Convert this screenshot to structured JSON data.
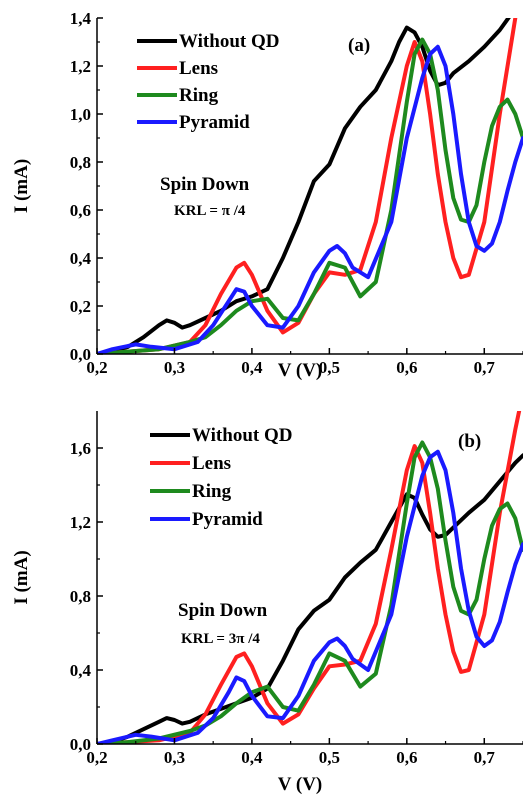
{
  "colors": {
    "without_qd": "#000000",
    "lens": "#ff2020",
    "ring": "#1e8a1e",
    "pyramid": "#1a1aff"
  },
  "chart_data": [
    {
      "type": "line",
      "panel_label": "(a)",
      "xlabel": "V (V)",
      "ylabel": "I (mA)",
      "xlim": [
        0.2,
        0.75
      ],
      "ylim": [
        0.0,
        1.4
      ],
      "xticks": [
        0.2,
        0.3,
        0.4,
        0.5,
        0.6,
        0.7
      ],
      "xtick_labels": [
        "0,2",
        "0,3",
        "0,4",
        "0,5",
        "0,6",
        "0,7"
      ],
      "yticks": [
        0.0,
        0.2,
        0.4,
        0.6,
        0.8,
        1.0,
        1.2,
        1.4
      ],
      "ytick_labels": [
        "0,0",
        "0,2",
        "0,4",
        "0,6",
        "0,8",
        "1,0",
        "1,2",
        "1,4"
      ],
      "annotation_line1": "Spin Down",
      "annotation_line2": "KRL = π /4",
      "legend_position": "top-left",
      "series": [
        {
          "name": "Without QD",
          "x": [
            0.2,
            0.22,
            0.24,
            0.26,
            0.28,
            0.29,
            0.3,
            0.31,
            0.32,
            0.34,
            0.36,
            0.38,
            0.4,
            0.42,
            0.44,
            0.46,
            0.48,
            0.5,
            0.52,
            0.54,
            0.56,
            0.58,
            0.59,
            0.6,
            0.61,
            0.62,
            0.63,
            0.64,
            0.65,
            0.66,
            0.68,
            0.7,
            0.72,
            0.74,
            0.75
          ],
          "y": [
            0.0,
            0.01,
            0.03,
            0.07,
            0.12,
            0.14,
            0.13,
            0.11,
            0.12,
            0.15,
            0.18,
            0.22,
            0.24,
            0.27,
            0.4,
            0.55,
            0.72,
            0.79,
            0.94,
            1.03,
            1.1,
            1.22,
            1.3,
            1.36,
            1.34,
            1.28,
            1.18,
            1.12,
            1.13,
            1.17,
            1.22,
            1.28,
            1.35,
            1.44,
            1.5
          ]
        },
        {
          "name": "Lens",
          "x": [
            0.2,
            0.24,
            0.28,
            0.32,
            0.34,
            0.36,
            0.38,
            0.39,
            0.4,
            0.42,
            0.44,
            0.46,
            0.48,
            0.5,
            0.52,
            0.54,
            0.56,
            0.58,
            0.6,
            0.61,
            0.62,
            0.63,
            0.64,
            0.65,
            0.66,
            0.67,
            0.68,
            0.7,
            0.72,
            0.74,
            0.75
          ],
          "y": [
            0.0,
            0.01,
            0.02,
            0.05,
            0.12,
            0.25,
            0.36,
            0.38,
            0.33,
            0.18,
            0.09,
            0.13,
            0.25,
            0.34,
            0.33,
            0.35,
            0.55,
            0.9,
            1.2,
            1.3,
            1.22,
            1.0,
            0.75,
            0.55,
            0.4,
            0.32,
            0.33,
            0.55,
            1.0,
            1.4,
            1.6
          ]
        },
        {
          "name": "Ring",
          "x": [
            0.2,
            0.24,
            0.28,
            0.32,
            0.34,
            0.36,
            0.38,
            0.4,
            0.42,
            0.44,
            0.46,
            0.48,
            0.5,
            0.52,
            0.54,
            0.56,
            0.58,
            0.6,
            0.61,
            0.62,
            0.63,
            0.64,
            0.65,
            0.66,
            0.67,
            0.68,
            0.69,
            0.7,
            0.71,
            0.72,
            0.73,
            0.74,
            0.75
          ],
          "y": [
            0.0,
            0.01,
            0.02,
            0.05,
            0.07,
            0.12,
            0.18,
            0.22,
            0.23,
            0.15,
            0.14,
            0.25,
            0.38,
            0.36,
            0.24,
            0.3,
            0.6,
            1.05,
            1.25,
            1.31,
            1.25,
            1.1,
            0.85,
            0.65,
            0.56,
            0.55,
            0.62,
            0.8,
            0.95,
            1.03,
            1.06,
            1.0,
            0.9
          ]
        },
        {
          "name": "Pyramid",
          "x": [
            0.2,
            0.22,
            0.25,
            0.27,
            0.3,
            0.33,
            0.35,
            0.37,
            0.38,
            0.39,
            0.4,
            0.42,
            0.44,
            0.46,
            0.48,
            0.5,
            0.51,
            0.52,
            0.53,
            0.55,
            0.58,
            0.6,
            0.62,
            0.63,
            0.64,
            0.65,
            0.66,
            0.67,
            0.68,
            0.69,
            0.7,
            0.71,
            0.72,
            0.73,
            0.74,
            0.75
          ],
          "y": [
            0.0,
            0.02,
            0.04,
            0.03,
            0.02,
            0.05,
            0.12,
            0.22,
            0.27,
            0.26,
            0.2,
            0.12,
            0.11,
            0.2,
            0.34,
            0.43,
            0.45,
            0.42,
            0.36,
            0.32,
            0.55,
            0.9,
            1.15,
            1.25,
            1.28,
            1.2,
            1.0,
            0.75,
            0.55,
            0.45,
            0.43,
            0.46,
            0.55,
            0.68,
            0.8,
            0.9
          ]
        }
      ]
    },
    {
      "type": "line",
      "panel_label": "(b)",
      "xlabel": "V (V)",
      "ylabel": "I (mA)",
      "xlim": [
        0.2,
        0.75
      ],
      "ylim": [
        0.0,
        1.8
      ],
      "xticks": [
        0.2,
        0.3,
        0.4,
        0.5,
        0.6,
        0.7
      ],
      "xtick_labels": [
        "0,2",
        "0,3",
        "0,4",
        "0,5",
        "0,6",
        "0,7"
      ],
      "yticks": [
        0.0,
        0.4,
        0.8,
        1.2,
        1.6
      ],
      "ytick_labels": [
        "0,0",
        "0,4",
        "0,8",
        "1,2",
        "1,6"
      ],
      "annotation_line1": "Spin Down",
      "annotation_line2": "KRL = 3π /4",
      "legend_position": "top-left",
      "series": [
        {
          "name": "Without QD",
          "x": [
            0.2,
            0.22,
            0.24,
            0.26,
            0.28,
            0.29,
            0.3,
            0.31,
            0.32,
            0.34,
            0.36,
            0.38,
            0.4,
            0.42,
            0.44,
            0.46,
            0.48,
            0.5,
            0.52,
            0.54,
            0.56,
            0.58,
            0.6,
            0.61,
            0.62,
            0.63,
            0.64,
            0.65,
            0.66,
            0.68,
            0.7,
            0.72,
            0.74,
            0.75
          ],
          "y": [
            0.0,
            0.01,
            0.04,
            0.08,
            0.12,
            0.14,
            0.13,
            0.11,
            0.12,
            0.16,
            0.19,
            0.22,
            0.25,
            0.3,
            0.45,
            0.62,
            0.72,
            0.78,
            0.9,
            0.98,
            1.05,
            1.2,
            1.35,
            1.33,
            1.24,
            1.16,
            1.12,
            1.13,
            1.17,
            1.25,
            1.32,
            1.42,
            1.52,
            1.56
          ]
        },
        {
          "name": "Lens",
          "x": [
            0.2,
            0.24,
            0.28,
            0.32,
            0.34,
            0.36,
            0.38,
            0.39,
            0.4,
            0.42,
            0.44,
            0.46,
            0.48,
            0.5,
            0.52,
            0.54,
            0.56,
            0.58,
            0.6,
            0.61,
            0.62,
            0.63,
            0.64,
            0.65,
            0.66,
            0.67,
            0.68,
            0.7,
            0.72,
            0.74,
            0.75
          ],
          "y": [
            0.0,
            0.01,
            0.02,
            0.06,
            0.16,
            0.32,
            0.47,
            0.49,
            0.42,
            0.22,
            0.11,
            0.16,
            0.3,
            0.42,
            0.43,
            0.45,
            0.65,
            1.05,
            1.48,
            1.61,
            1.52,
            1.25,
            0.95,
            0.7,
            0.5,
            0.39,
            0.4,
            0.7,
            1.25,
            1.7,
            1.9
          ]
        },
        {
          "name": "Ring",
          "x": [
            0.2,
            0.24,
            0.28,
            0.32,
            0.34,
            0.36,
            0.38,
            0.4,
            0.42,
            0.44,
            0.46,
            0.48,
            0.5,
            0.52,
            0.54,
            0.56,
            0.58,
            0.6,
            0.61,
            0.62,
            0.63,
            0.64,
            0.65,
            0.66,
            0.67,
            0.68,
            0.69,
            0.7,
            0.71,
            0.72,
            0.73,
            0.74,
            0.75
          ],
          "y": [
            0.0,
            0.01,
            0.03,
            0.07,
            0.1,
            0.15,
            0.22,
            0.28,
            0.31,
            0.2,
            0.18,
            0.32,
            0.49,
            0.45,
            0.31,
            0.38,
            0.75,
            1.3,
            1.55,
            1.63,
            1.55,
            1.38,
            1.1,
            0.85,
            0.72,
            0.7,
            0.78,
            1.0,
            1.18,
            1.27,
            1.3,
            1.22,
            1.05
          ]
        },
        {
          "name": "Pyramid",
          "x": [
            0.2,
            0.22,
            0.25,
            0.27,
            0.3,
            0.33,
            0.35,
            0.37,
            0.38,
            0.39,
            0.4,
            0.42,
            0.44,
            0.46,
            0.48,
            0.5,
            0.51,
            0.52,
            0.53,
            0.55,
            0.58,
            0.6,
            0.62,
            0.63,
            0.64,
            0.65,
            0.66,
            0.67,
            0.68,
            0.69,
            0.7,
            0.71,
            0.72,
            0.73,
            0.74,
            0.75
          ],
          "y": [
            0.0,
            0.02,
            0.05,
            0.04,
            0.02,
            0.06,
            0.14,
            0.28,
            0.36,
            0.34,
            0.26,
            0.15,
            0.14,
            0.26,
            0.45,
            0.55,
            0.57,
            0.53,
            0.46,
            0.4,
            0.7,
            1.12,
            1.45,
            1.55,
            1.58,
            1.48,
            1.25,
            0.95,
            0.72,
            0.58,
            0.53,
            0.56,
            0.66,
            0.82,
            0.97,
            1.08
          ]
        }
      ]
    }
  ]
}
